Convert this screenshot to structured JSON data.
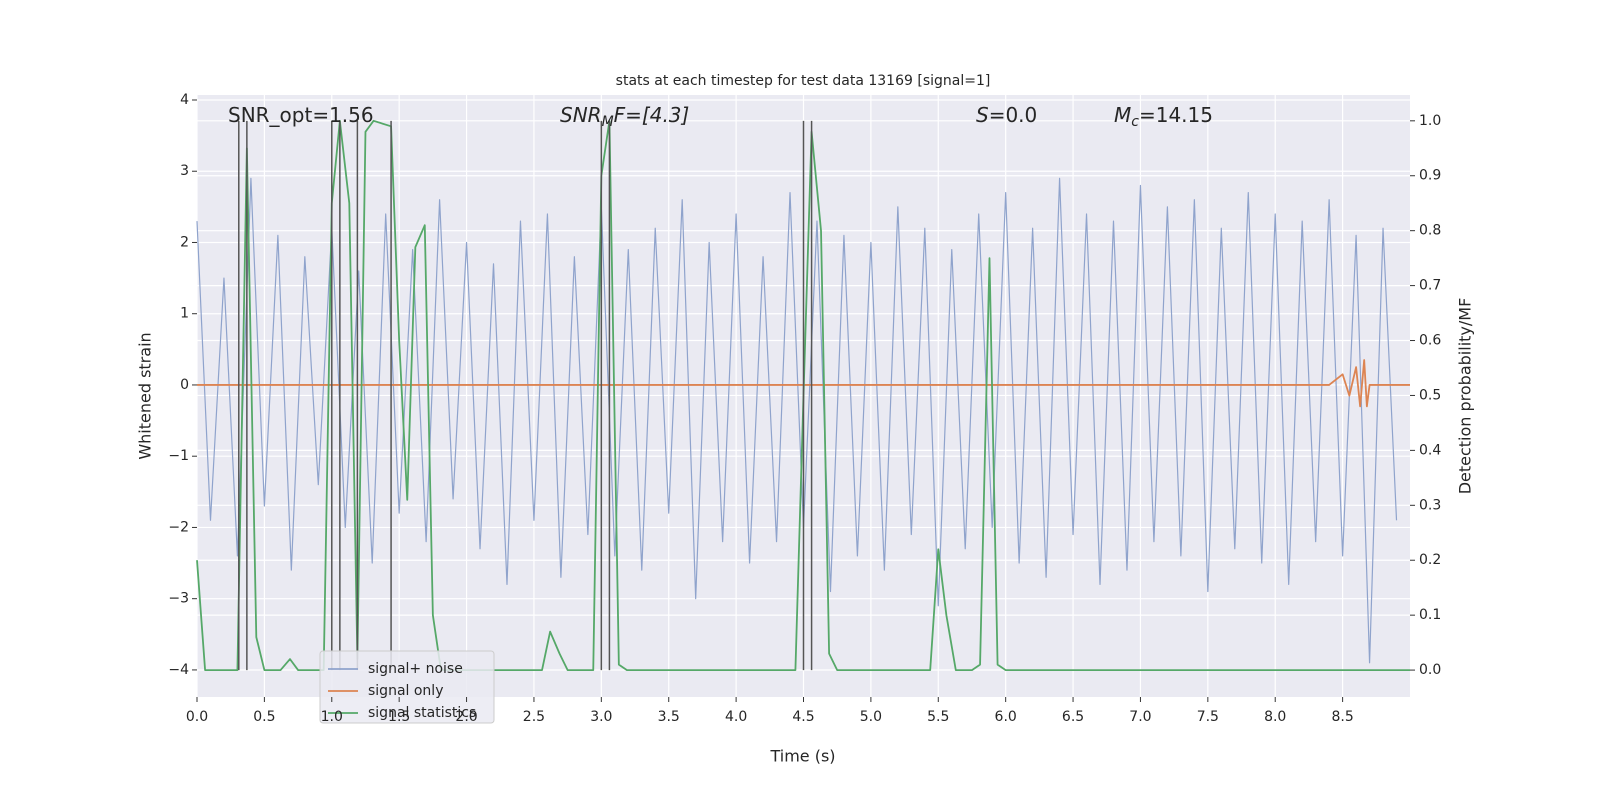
{
  "chart_data": {
    "type": "line",
    "title": "stats at each timestep for test data 13169 [signal=1]",
    "xlabel": "Time (s)",
    "ylabel": "Whitened strain",
    "y2label": "Detection probability/MF",
    "xlim": [
      0,
      9.0
    ],
    "ylim": [
      -4.38,
      4.07
    ],
    "y2lim": [
      -0.049,
      1.047
    ],
    "xticks": [
      {
        "value": 0,
        "label": "0.0"
      },
      {
        "value": 0.5,
        "label": "0.5"
      },
      {
        "value": 1,
        "label": "1.0"
      },
      {
        "value": 1.5,
        "label": "1.5"
      },
      {
        "value": 2,
        "label": "2.0"
      },
      {
        "value": 2.5,
        "label": "2.5"
      },
      {
        "value": 3,
        "label": "3.0"
      },
      {
        "value": 3.5,
        "label": "3.5"
      },
      {
        "value": 4,
        "label": "4.0"
      },
      {
        "value": 4.5,
        "label": "4.5"
      },
      {
        "value": 5,
        "label": "5.0"
      },
      {
        "value": 5.5,
        "label": "5.5"
      },
      {
        "value": 6,
        "label": "6.0"
      },
      {
        "value": 6.5,
        "label": "6.5"
      },
      {
        "value": 7,
        "label": "7.0"
      },
      {
        "value": 7.5,
        "label": "7.5"
      },
      {
        "value": 8,
        "label": "8.0"
      },
      {
        "value": 8.5,
        "label": "8.5"
      }
    ],
    "yticks": [
      {
        "value": -4,
        "label": "−4"
      },
      {
        "value": -3,
        "label": "−3"
      },
      {
        "value": -2,
        "label": "−2"
      },
      {
        "value": -1,
        "label": "−1"
      },
      0,
      1,
      2,
      3,
      4
    ],
    "y2ticks": [
      {
        "value": 0,
        "label": "0.0"
      },
      0.1,
      0.2,
      0.3,
      0.4,
      0.5,
      0.6,
      0.7,
      0.8,
      0.9,
      {
        "value": 1,
        "label": "1.0"
      }
    ],
    "grid": true,
    "series": [
      {
        "name": "signal+ noise",
        "color": "#8fa3cc",
        "x": [
          0,
          0.1,
          0.2,
          0.3,
          0.4,
          0.5,
          0.6,
          0.7,
          0.8,
          0.9,
          1,
          1.1,
          1.2,
          1.3,
          1.4,
          1.5,
          1.6,
          1.7,
          1.8,
          1.9,
          2,
          2.1,
          2.2,
          2.3,
          2.4,
          2.5,
          2.6,
          2.7,
          2.8,
          2.9,
          3,
          3.1,
          3.2,
          3.3,
          3.4,
          3.5,
          3.6,
          3.7,
          3.8,
          3.9,
          4,
          4.1,
          4.2,
          4.3,
          4.4,
          4.5,
          4.6,
          4.7,
          4.8,
          4.9,
          5,
          5.1,
          5.2,
          5.3,
          5.4,
          5.5,
          5.6,
          5.7,
          5.8,
          5.9,
          6,
          6.1,
          6.2,
          6.3,
          6.4,
          6.5,
          6.6,
          6.7,
          6.8,
          6.9,
          7,
          7.1,
          7.2,
          7.3,
          7.4,
          7.5,
          7.6,
          7.7,
          7.8,
          7.9,
          8,
          8.1,
          8.2,
          8.3,
          8.4,
          8.5,
          8.6,
          8.7,
          8.8,
          8.9
        ],
        "values": [
          2.3,
          -1.9,
          1.5,
          -2.4,
          2.9,
          -1.7,
          2.1,
          -2.6,
          1.8,
          -1.4,
          2.2,
          -2.0,
          1.6,
          -2.5,
          2.4,
          -1.8,
          1.9,
          -2.2,
          2.6,
          -1.6,
          2.0,
          -2.3,
          1.7,
          -2.8,
          2.3,
          -1.9,
          2.4,
          -2.7,
          1.8,
          -2.1,
          2.5,
          -2.4,
          1.9,
          -2.6,
          2.2,
          -1.8,
          2.6,
          -3.0,
          2.0,
          -2.2,
          2.4,
          -2.5,
          1.8,
          -2.2,
          2.7,
          -2.0,
          2.3,
          -2.9,
          2.1,
          -2.4,
          2.0,
          -2.6,
          2.5,
          -2.1,
          2.2,
          -3.1,
          1.9,
          -2.3,
          2.4,
          -2.0,
          2.7,
          -2.5,
          2.2,
          -2.7,
          2.9,
          -2.1,
          2.4,
          -2.8,
          2.3,
          -2.6,
          2.8,
          -2.2,
          2.5,
          -2.4,
          2.6,
          -2.9,
          2.2,
          -2.3,
          2.7,
          -2.5,
          2.4,
          -2.8,
          2.3,
          -2.2,
          2.6,
          -2.4,
          2.1,
          -3.9,
          2.2,
          -1.9
        ]
      },
      {
        "name": "signal only",
        "color": "#dd8452",
        "x": [
          0,
          8.4,
          8.5,
          8.55,
          8.6,
          8.63,
          8.66,
          8.68,
          8.7,
          9.0
        ],
        "values": [
          0,
          0,
          0.15,
          -0.15,
          0.25,
          -0.3,
          0.35,
          -0.3,
          0,
          0
        ]
      },
      {
        "name": "signal statistics",
        "color": "#55a868",
        "axis": "y2",
        "x": [
          0,
          0.06,
          0.3,
          0.37,
          0.44,
          0.5,
          0.62,
          0.69,
          0.75,
          0.94,
          1.0,
          1.06,
          1.13,
          1.19,
          1.25,
          1.31,
          1.44,
          1.5,
          1.56,
          1.62,
          1.69,
          1.75,
          1.81,
          2.56,
          2.62,
          2.69,
          2.75,
          2.94,
          3.0,
          3.06,
          3.13,
          3.19,
          4.44,
          4.5,
          4.56,
          4.63,
          4.69,
          4.75,
          5.0,
          5.44,
          5.5,
          5.56,
          5.63,
          5.75,
          5.81,
          5.88,
          5.94,
          6.0,
          7.0,
          9.0
        ],
        "values": [
          0.2,
          0,
          0,
          0.95,
          0.06,
          0,
          0,
          0.02,
          0,
          0,
          0.85,
          1.0,
          0.85,
          0.02,
          0.98,
          1.0,
          0.99,
          0.6,
          0.31,
          0.77,
          0.81,
          0.1,
          0,
          0,
          0.07,
          0.03,
          0,
          0,
          0.9,
          1.0,
          0.01,
          0,
          0,
          0.5,
          0.98,
          0.8,
          0.03,
          0,
          0,
          0,
          0.22,
          0.1,
          0,
          0,
          0.01,
          0.75,
          0.01,
          0,
          0,
          0
        ]
      }
    ],
    "vlines": {
      "color": "#555555",
      "x": [
        0.31,
        0.37,
        1.0,
        1.06,
        1.19,
        1.44,
        3.0,
        3.06,
        4.5,
        4.56
      ],
      "span": [
        0,
        1
      ]
    },
    "annotations": [
      {
        "parts": [
          "SNR_opt=1.56"
        ]
      },
      {
        "parts": [
          "SNR",
          "M",
          "F=[4.3]"
        ]
      },
      {
        "parts": [
          "S",
          "=0.0"
        ]
      },
      {
        "parts": [
          "M",
          "c",
          "=14.15"
        ]
      }
    ]
  }
}
